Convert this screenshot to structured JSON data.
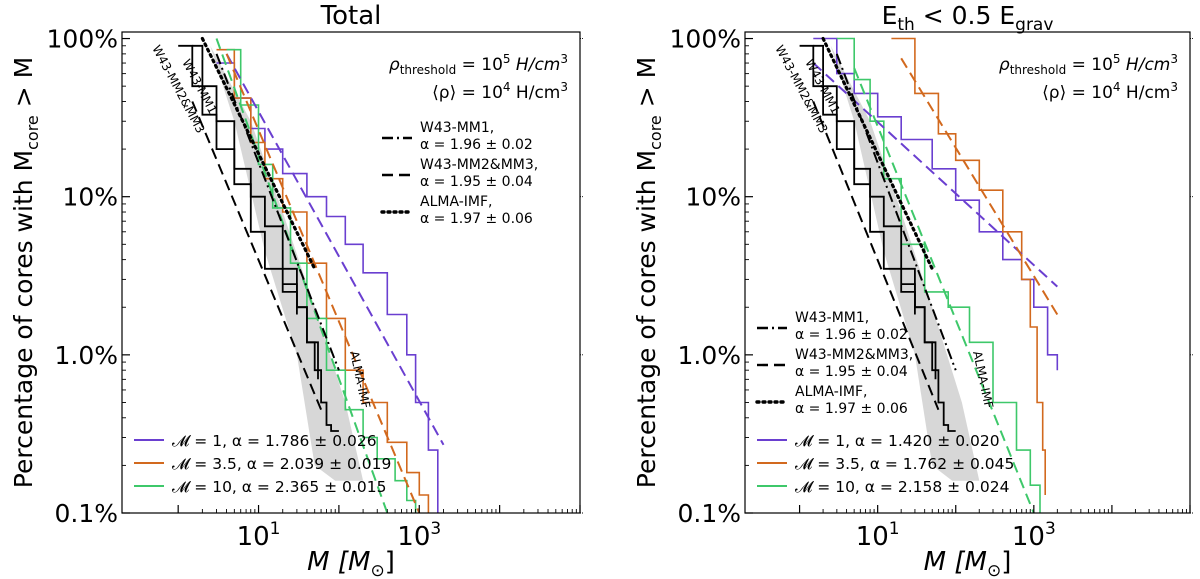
{
  "chart_data": [
    {
      "type": "line",
      "title": "Total",
      "xlabel": "M [M⊙]",
      "ylabel": "Percentage of cores with Mcore > M",
      "xscale": "log",
      "yscale": "log",
      "xlim": [
        0.2,
        100000
      ],
      "ylim": [
        0.001,
        1.1
      ],
      "xticks": [
        10,
        1000
      ],
      "xtick_labels": [
        "10^1",
        "10^3"
      ],
      "yticks": [
        0.001,
        0.01,
        0.1,
        1
      ],
      "ytick_labels": [
        "0.1%",
        "1.0%",
        "10%",
        "100%"
      ],
      "annotations": [
        {
          "text": "ρthreshold = 10^5 H/cm^3"
        },
        {
          "text": "⟨ρ⟩ = 10^4 H/cm^3"
        }
      ],
      "series": [
        {
          "name": "M=1",
          "label": "𝓜 = 1,  α = 1.786 ± 0.026",
          "color": "#6a3fd0",
          "kind": "step",
          "x": [
            3,
            5,
            8,
            12,
            20,
            40,
            70,
            120,
            200,
            400,
            700,
            900,
            1300,
            1700
          ],
          "y": [
            0.7,
            0.42,
            0.27,
            0.2,
            0.14,
            0.1,
            0.075,
            0.05,
            0.033,
            0.018,
            0.01,
            0.005,
            0.0025,
            0.001
          ]
        },
        {
          "name": "M=3.5",
          "label": "𝓜 = 3.5,  α = 2.039 ± 0.019",
          "color": "#d2691e",
          "kind": "step",
          "x": [
            3,
            5,
            8,
            12,
            20,
            40,
            70,
            120,
            200,
            400,
            700,
            1000,
            1300
          ],
          "y": [
            0.85,
            0.42,
            0.22,
            0.13,
            0.08,
            0.038,
            0.017,
            0.008,
            0.005,
            0.0028,
            0.0018,
            0.0013,
            0.001
          ]
        },
        {
          "name": "M=10",
          "label": "𝓜 = 10,  α = 2.365 ± 0.015",
          "color": "#3ec86a",
          "kind": "step",
          "x": [
            4,
            6,
            10,
            15,
            25,
            40,
            70,
            120,
            200,
            300,
            500,
            700,
            900
          ],
          "y": [
            0.85,
            0.38,
            0.16,
            0.085,
            0.038,
            0.017,
            0.008,
            0.0045,
            0.003,
            0.0022,
            0.0016,
            0.0012,
            0.001
          ]
        },
        {
          "name": "M=1 fit",
          "color": "#6a3fd0",
          "kind": "dashed",
          "x": [
            4,
            2000
          ],
          "y": [
            0.8,
            0.0027
          ]
        },
        {
          "name": "M=3.5 fit",
          "color": "#d2691e",
          "kind": "dashed",
          "x": [
            4,
            1000
          ],
          "y": [
            0.8,
            0.00098
          ]
        },
        {
          "name": "M=10 fit",
          "color": "#3ec86a",
          "kind": "dashed",
          "x": [
            3,
            400
          ],
          "y": [
            1.0,
            0.0008
          ]
        },
        {
          "name": "W43-MM1 CMF",
          "color": "#000000",
          "kind": "step",
          "x": [
            1.5,
            2,
            3,
            5,
            8,
            12,
            20,
            30,
            40,
            55
          ],
          "y": [
            0.9,
            0.5,
            0.3,
            0.15,
            0.1,
            0.065,
            0.035,
            0.02,
            0.012,
            0.007
          ]
        },
        {
          "name": "W43-MM2&MM3 CMF",
          "color": "#000000",
          "kind": "step",
          "x": [
            1,
            1.5,
            2,
            3,
            5,
            8,
            12,
            20,
            30
          ],
          "y": [
            0.9,
            0.5,
            0.33,
            0.2,
            0.12,
            0.06,
            0.035,
            0.025,
            0.018
          ]
        },
        {
          "name": "ALMA-IMF CMF",
          "color": "#000000",
          "kind": "step",
          "x": [
            20,
            30,
            40,
            50,
            60,
            70,
            80,
            100
          ],
          "y": [
            0.028,
            0.02,
            0.012,
            0.008,
            0.005,
            0.0036,
            0.0033,
            0.0033
          ]
        },
        {
          "name": "W43-MM1 fit",
          "color": "#000000",
          "kind": "dashdot",
          "x": [
            3,
            100
          ],
          "y": [
            0.8,
            0.008
          ]
        },
        {
          "name": "W43-MM2&MM3 fit",
          "color": "#000000",
          "kind": "dashed",
          "x": [
            1.5,
            60
          ],
          "y": [
            0.4,
            0.0045
          ]
        },
        {
          "name": "ALMA-IMF fit",
          "color": "#000000",
          "kind": "dotted",
          "x": [
            2,
            50
          ],
          "y": [
            1.0,
            0.035
          ]
        }
      ],
      "black_legend": [
        {
          "label": "W43-MM1,",
          "alpha": "α = 1.96 ± 0.02",
          "style": "dashdot"
        },
        {
          "label": "W43-MM2&MM3,",
          "alpha": "α = 1.95 ± 0.04",
          "style": "dashed"
        },
        {
          "label": "ALMA-IMF,",
          "alpha": "α = 1.97 ± 0.06",
          "style": "dotted"
        }
      ],
      "inline_labels": [
        "W43-MM1",
        "W43-MM2&MM3",
        "ALMA-IMF"
      ],
      "shade": {
        "x": [
          2.5,
          8,
          20,
          50,
          120,
          200,
          90,
          50,
          30,
          12,
          5
        ],
        "y": [
          0.9,
          0.3,
          0.08,
          0.02,
          0.005,
          0.0016,
          0.0016,
          0.002,
          0.01,
          0.045,
          0.3
        ]
      }
    },
    {
      "type": "line",
      "title": "Eth < 0.5 Egrav",
      "xlabel": "M [M⊙]",
      "ylabel": "Percentage of cores with Mcore > M",
      "xscale": "log",
      "yscale": "log",
      "xlim": [
        0.2,
        100000
      ],
      "ylim": [
        0.001,
        1.1
      ],
      "xticks": [
        10,
        1000
      ],
      "xtick_labels": [
        "10^1",
        "10^3"
      ],
      "yticks": [
        0.001,
        0.01,
        0.1,
        1
      ],
      "ytick_labels": [
        "0.1%",
        "1.0%",
        "10%",
        "100%"
      ],
      "annotations": [
        {
          "text": "ρthreshold = 10^5 H/cm^3"
        },
        {
          "text": "⟨ρ⟩ = 10^4 H/cm^3"
        }
      ],
      "series": [
        {
          "name": "M=1",
          "label": "𝓜 = 1,  α = 1.420 ± 0.020",
          "color": "#6a3fd0",
          "kind": "step",
          "x": [
            1.5,
            3,
            5,
            10,
            20,
            50,
            100,
            200,
            400,
            700,
            1000,
            1500,
            2000
          ],
          "y": [
            1.0,
            0.6,
            0.45,
            0.32,
            0.23,
            0.15,
            0.095,
            0.06,
            0.04,
            0.03,
            0.02,
            0.01,
            0.008
          ]
        },
        {
          "name": "M=3.5",
          "label": "𝓜 = 3.5,  α = 1.762 ± 0.045",
          "color": "#d2691e",
          "kind": "step",
          "x": [
            15,
            30,
            60,
            100,
            200,
            400,
            700,
            900,
            1100,
            1300,
            1400
          ],
          "y": [
            1.0,
            0.45,
            0.25,
            0.17,
            0.11,
            0.06,
            0.03,
            0.015,
            0.005,
            0.0025,
            0.0013
          ]
        },
        {
          "name": "M=10",
          "label": "𝓜 = 10,  α = 2.158 ± 0.024",
          "color": "#3ec86a",
          "kind": "step",
          "x": [
            3,
            5,
            8,
            12,
            20,
            40,
            80,
            150,
            300,
            600,
            900,
            1200
          ],
          "y": [
            1.0,
            0.55,
            0.3,
            0.13,
            0.05,
            0.025,
            0.02,
            0.012,
            0.005,
            0.0025,
            0.0015,
            0.001
          ]
        },
        {
          "name": "M=1 fit",
          "color": "#6a3fd0",
          "kind": "dashed",
          "x": [
            1.5,
            2000
          ],
          "y": [
            0.7,
            0.027
          ]
        },
        {
          "name": "M=3.5 fit",
          "color": "#d2691e",
          "kind": "dashed",
          "x": [
            20,
            2000
          ],
          "y": [
            0.75,
            0.018
          ]
        },
        {
          "name": "M=10 fit",
          "color": "#3ec86a",
          "kind": "dashed",
          "x": [
            5,
            1000
          ],
          "y": [
            0.65,
            0.001
          ]
        },
        {
          "name": "W43-MM1 CMF",
          "color": "#000000",
          "kind": "step",
          "x": [
            1.5,
            2,
            3,
            5,
            8,
            12,
            20,
            30,
            40,
            55
          ],
          "y": [
            0.9,
            0.5,
            0.3,
            0.15,
            0.1,
            0.065,
            0.035,
            0.02,
            0.012,
            0.007
          ]
        },
        {
          "name": "W43-MM2&MM3 CMF",
          "color": "#000000",
          "kind": "step",
          "x": [
            1,
            1.5,
            2,
            3,
            5,
            8,
            12,
            20,
            30
          ],
          "y": [
            0.9,
            0.5,
            0.33,
            0.2,
            0.12,
            0.06,
            0.035,
            0.025,
            0.018
          ]
        },
        {
          "name": "ALMA-IMF CMF",
          "color": "#000000",
          "kind": "step",
          "x": [
            20,
            30,
            40,
            50,
            60,
            70,
            80,
            100
          ],
          "y": [
            0.028,
            0.02,
            0.012,
            0.008,
            0.005,
            0.0036,
            0.0033,
            0.0033
          ]
        },
        {
          "name": "W43-MM1 fit",
          "color": "#000000",
          "kind": "dashdot",
          "x": [
            3,
            100
          ],
          "y": [
            0.8,
            0.008
          ]
        },
        {
          "name": "W43-MM2&MM3 fit",
          "color": "#000000",
          "kind": "dashed",
          "x": [
            1.5,
            60
          ],
          "y": [
            0.4,
            0.0045
          ]
        },
        {
          "name": "ALMA-IMF fit",
          "color": "#000000",
          "kind": "dotted",
          "x": [
            2,
            50
          ],
          "y": [
            1.0,
            0.035
          ]
        }
      ],
      "black_legend": [
        {
          "label": "W43-MM1,",
          "alpha": "α = 1.96 ± 0.02",
          "style": "dashdot"
        },
        {
          "label": "W43-MM2&MM3,",
          "alpha": "α = 1.95 ± 0.04",
          "style": "dashed"
        },
        {
          "label": "ALMA-IMF,",
          "alpha": "α = 1.97 ± 0.06",
          "style": "dotted"
        }
      ],
      "inline_labels": [
        "W43-MM1",
        "W43-MM2&MM3",
        "ALMA-IMF"
      ],
      "shade": {
        "x": [
          2.5,
          8,
          20,
          50,
          120,
          200,
          90,
          50,
          30,
          12,
          5
        ],
        "y": [
          0.9,
          0.3,
          0.08,
          0.02,
          0.005,
          0.0016,
          0.0016,
          0.002,
          0.01,
          0.045,
          0.3
        ]
      }
    }
  ]
}
